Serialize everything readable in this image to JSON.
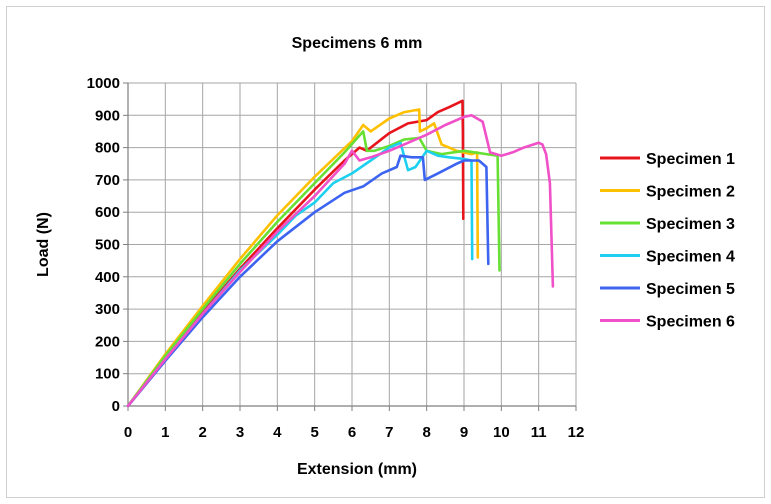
{
  "chart_data": {
    "type": "line",
    "title": "Specimens 6 mm",
    "xlabel": "Extension (mm)",
    "ylabel": "Load (N)",
    "xlim": [
      0,
      12
    ],
    "ylim": [
      0,
      1000
    ],
    "x_ticks": [
      "0",
      "1",
      "2",
      "3",
      "4",
      "5",
      "6",
      "7",
      "8",
      "9",
      "10",
      "11",
      "12"
    ],
    "y_ticks": [
      "0",
      "100",
      "200",
      "300",
      "400",
      "500",
      "600",
      "700",
      "800",
      "900",
      "1000"
    ],
    "grid": true,
    "legend_position": "right",
    "series": [
      {
        "name": "Specimen 1",
        "color": "#e8141c",
        "points": [
          [
            0,
            0
          ],
          [
            1,
            150
          ],
          [
            2,
            290
          ],
          [
            3,
            425
          ],
          [
            4,
            550
          ],
          [
            5,
            670
          ],
          [
            5.8,
            760
          ],
          [
            6.2,
            800
          ],
          [
            6.4,
            790
          ],
          [
            6.5,
            800
          ],
          [
            7,
            845
          ],
          [
            7.5,
            875
          ],
          [
            8,
            885
          ],
          [
            8.3,
            910
          ],
          [
            8.6,
            925
          ],
          [
            8.96,
            945
          ],
          [
            8.97,
            850
          ],
          [
            8.98,
            580
          ]
        ]
      },
      {
        "name": "Specimen 2",
        "color": "#ffc000",
        "points": [
          [
            0,
            0
          ],
          [
            1,
            160
          ],
          [
            2,
            310
          ],
          [
            3,
            455
          ],
          [
            4,
            590
          ],
          [
            5,
            710
          ],
          [
            6,
            820
          ],
          [
            6.3,
            870
          ],
          [
            6.5,
            850
          ],
          [
            7,
            890
          ],
          [
            7.4,
            910
          ],
          [
            7.8,
            918
          ],
          [
            7.82,
            850
          ],
          [
            8,
            860
          ],
          [
            8.2,
            875
          ],
          [
            8.4,
            810
          ],
          [
            8.6,
            800
          ],
          [
            8.8,
            790
          ],
          [
            9.2,
            780
          ],
          [
            9.35,
            785
          ],
          [
            9.37,
            460
          ]
        ]
      },
      {
        "name": "Specimen 3",
        "color": "#66e033",
        "points": [
          [
            0,
            0
          ],
          [
            1,
            155
          ],
          [
            2,
            300
          ],
          [
            3,
            440
          ],
          [
            4,
            570
          ],
          [
            5,
            690
          ],
          [
            5.8,
            785
          ],
          [
            6.3,
            850
          ],
          [
            6.4,
            790
          ],
          [
            6.6,
            790
          ],
          [
            7,
            805
          ],
          [
            7.4,
            825
          ],
          [
            7.8,
            830
          ],
          [
            8,
            790
          ],
          [
            8.4,
            780
          ],
          [
            9,
            790
          ],
          [
            9.6,
            780
          ],
          [
            9.9,
            775
          ],
          [
            9.95,
            420
          ]
        ]
      },
      {
        "name": "Specimen 4",
        "color": "#1ed0f0",
        "points": [
          [
            0,
            0
          ],
          [
            1,
            145
          ],
          [
            2,
            285
          ],
          [
            3,
            420
          ],
          [
            4,
            530
          ],
          [
            4.5,
            590
          ],
          [
            5,
            630
          ],
          [
            5.5,
            690
          ],
          [
            6,
            720
          ],
          [
            6.5,
            760
          ],
          [
            7,
            800
          ],
          [
            7.3,
            815
          ],
          [
            7.5,
            730
          ],
          [
            7.7,
            740
          ],
          [
            8,
            790
          ],
          [
            8.3,
            775
          ],
          [
            8.6,
            770
          ],
          [
            9,
            765
          ],
          [
            9.2,
            760
          ],
          [
            9.22,
            455
          ]
        ]
      },
      {
        "name": "Specimen 5",
        "color": "#3c64f0",
        "points": [
          [
            0,
            0
          ],
          [
            1,
            140
          ],
          [
            2,
            275
          ],
          [
            3,
            400
          ],
          [
            4,
            510
          ],
          [
            5,
            600
          ],
          [
            5.8,
            660
          ],
          [
            6.3,
            680
          ],
          [
            6.8,
            720
          ],
          [
            7.2,
            740
          ],
          [
            7.3,
            775
          ],
          [
            7.6,
            770
          ],
          [
            7.9,
            770
          ],
          [
            7.95,
            700
          ],
          [
            8.3,
            720
          ],
          [
            8.8,
            750
          ],
          [
            9,
            760
          ],
          [
            9.4,
            760
          ],
          [
            9.6,
            740
          ],
          [
            9.65,
            440
          ]
        ]
      },
      {
        "name": "Specimen 6",
        "color": "#f050c8",
        "points": [
          [
            0,
            0
          ],
          [
            1,
            145
          ],
          [
            2,
            285
          ],
          [
            3,
            415
          ],
          [
            4,
            540
          ],
          [
            5,
            650
          ],
          [
            5.8,
            750
          ],
          [
            6,
            790
          ],
          [
            6.2,
            760
          ],
          [
            6.5,
            770
          ],
          [
            7,
            790
          ],
          [
            7.5,
            815
          ],
          [
            8,
            840
          ],
          [
            8.5,
            870
          ],
          [
            9,
            895
          ],
          [
            9.2,
            900
          ],
          [
            9.5,
            880
          ],
          [
            9.7,
            785
          ],
          [
            10,
            775
          ],
          [
            10.3,
            785
          ],
          [
            10.6,
            800
          ],
          [
            11,
            815
          ],
          [
            11.1,
            810
          ],
          [
            11.2,
            780
          ],
          [
            11.3,
            690
          ],
          [
            11.35,
            500
          ],
          [
            11.38,
            370
          ]
        ]
      }
    ]
  }
}
